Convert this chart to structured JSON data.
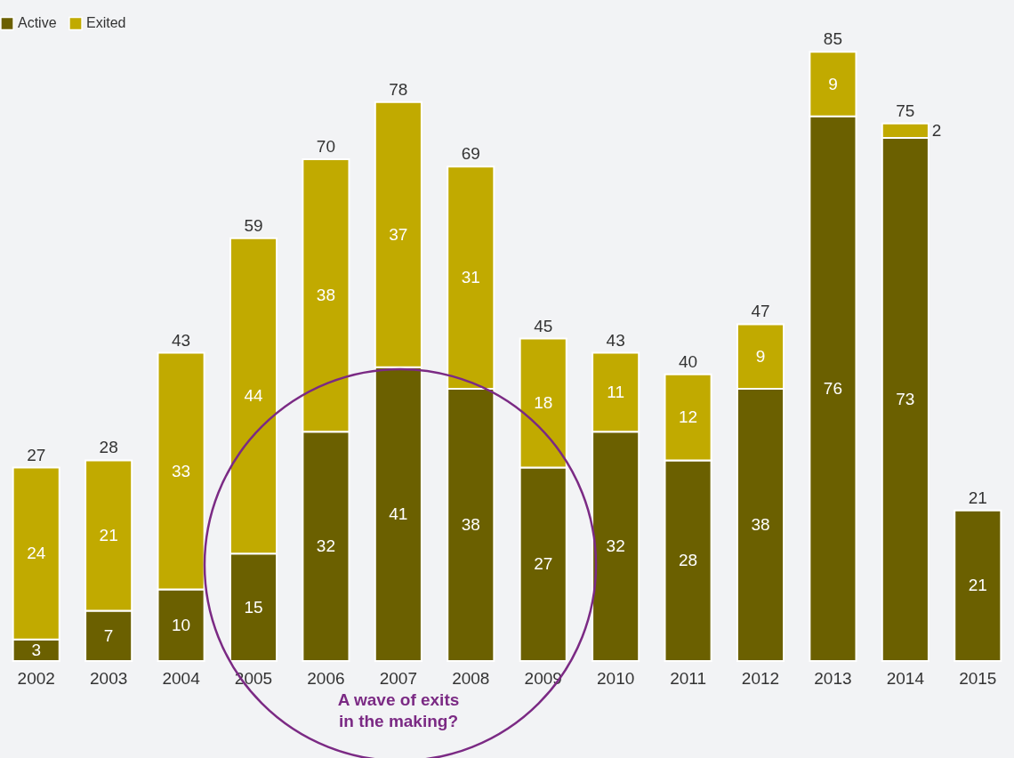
{
  "chart_data": {
    "type": "bar",
    "stacked": true,
    "tick_labels": "x",
    "data_labels": true,
    "legend": "top left",
    "grid": false,
    "categories": [
      "2002",
      "2003",
      "2004",
      "2005",
      "2006",
      "2007",
      "2008",
      "2009",
      "2010",
      "2011",
      "2012",
      "2013",
      "2014",
      "2015"
    ],
    "series": [
      {
        "name": "Active",
        "color": "#6b6000",
        "values": [
          3,
          7,
          10,
          15,
          32,
          41,
          38,
          27,
          32,
          28,
          38,
          76,
          73,
          21
        ]
      },
      {
        "name": "Exited",
        "color": "#c1aa00",
        "values": [
          24,
          21,
          33,
          44,
          38,
          37,
          31,
          18,
          11,
          12,
          9,
          9,
          2,
          null
        ]
      }
    ],
    "totals": [
      "27",
      "28",
      "43",
      "59",
      "70",
      "78",
      "69",
      "45",
      "43",
      "40",
      "47",
      "85",
      "75",
      "21"
    ],
    "annotations": [
      "A wave of exits\nin the making?"
    ]
  }
}
